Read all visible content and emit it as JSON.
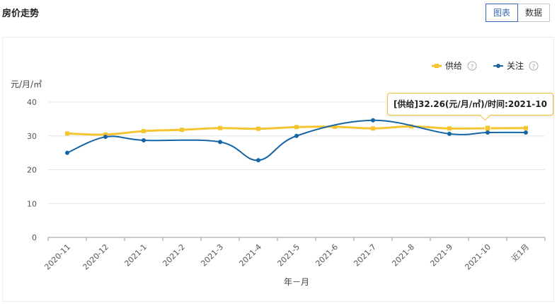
{
  "header": {
    "title": "房价走势"
  },
  "view_toggle": {
    "chart_label": "图表",
    "data_label": "数据"
  },
  "tooltip": {
    "text": "[供给]32.26(元/月/㎡)/时间:2021-10"
  },
  "colors": {
    "supply": "#f5c531",
    "attention": "#1565a6"
  },
  "chart_data": {
    "type": "line",
    "title": "房价走势",
    "ylabel": "元/月/㎡",
    "xlabel": "年－月",
    "ylim": [
      0,
      40
    ],
    "yticks": [
      0,
      10,
      20,
      30,
      40
    ],
    "categories": [
      "2020-11",
      "2020-12",
      "2021-1",
      "2021-2",
      "2021-3",
      "2021-4",
      "2021-5",
      "2021-6",
      "2021-7",
      "2021-8",
      "2021-9",
      "2021-10",
      "近1月"
    ],
    "series": [
      {
        "name": "供给",
        "color": "#f5c531",
        "values": [
          30.7,
          30.4,
          31.4,
          31.8,
          32.3,
          32.1,
          32.6,
          32.7,
          32.2,
          32.8,
          32.2,
          32.26,
          32.3
        ]
      },
      {
        "name": "关注",
        "color": "#1565a6",
        "values": [
          25.0,
          29.7,
          28.7,
          null,
          28.2,
          22.8,
          30.0,
          null,
          34.6,
          null,
          30.6,
          31.0,
          31.0
        ]
      }
    ],
    "legend": [
      "供给",
      "关注"
    ],
    "legend_help": "?",
    "highlight": {
      "series": "供给",
      "category": "2021-10"
    }
  }
}
